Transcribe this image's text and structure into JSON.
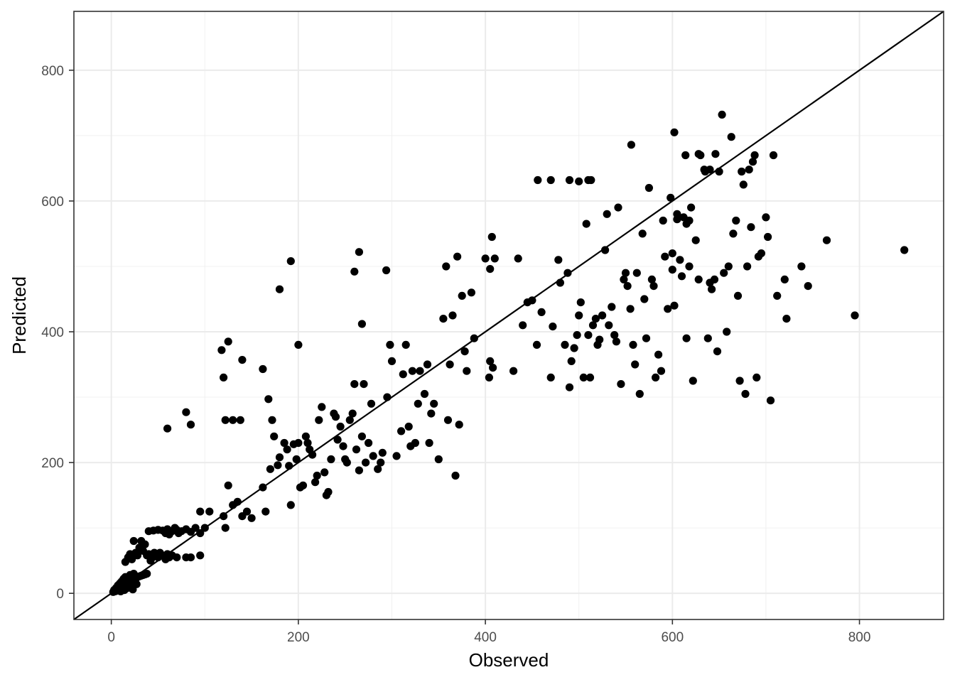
{
  "chart_data": {
    "type": "scatter",
    "xlabel": "Observed",
    "ylabel": "Predicted",
    "xlim": [
      -40,
      890
    ],
    "ylim": [
      -40,
      890
    ],
    "x_ticks": [
      0,
      200,
      400,
      600,
      800
    ],
    "y_ticks": [
      0,
      200,
      400,
      600,
      800
    ],
    "x_tick_labels": [
      "0",
      "200",
      "400",
      "600",
      "800"
    ],
    "y_tick_labels": [
      "0",
      "200",
      "400",
      "600",
      "800"
    ],
    "grid": true,
    "reference_line": {
      "type": "identity",
      "slope": 1,
      "intercept": 0
    },
    "point_color": "#000000",
    "points": [
      [
        2,
        2
      ],
      [
        3,
        5
      ],
      [
        4,
        3
      ],
      [
        5,
        8
      ],
      [
        6,
        4
      ],
      [
        7,
        12
      ],
      [
        8,
        6
      ],
      [
        9,
        15
      ],
      [
        10,
        3
      ],
      [
        11,
        18
      ],
      [
        12,
        9
      ],
      [
        13,
        22
      ],
      [
        14,
        5
      ],
      [
        15,
        25
      ],
      [
        16,
        12
      ],
      [
        17,
        8
      ],
      [
        18,
        20
      ],
      [
        19,
        15
      ],
      [
        20,
        28
      ],
      [
        21,
        10
      ],
      [
        22,
        24
      ],
      [
        23,
        6
      ],
      [
        24,
        30
      ],
      [
        25,
        18
      ],
      [
        26,
        22
      ],
      [
        27,
        14
      ],
      [
        28,
        25
      ],
      [
        30,
        26
      ],
      [
        32,
        27
      ],
      [
        34,
        28
      ],
      [
        36,
        29
      ],
      [
        38,
        30
      ],
      [
        15,
        48
      ],
      [
        18,
        55
      ],
      [
        20,
        60
      ],
      [
        22,
        52
      ],
      [
        24,
        80
      ],
      [
        26,
        62
      ],
      [
        28,
        58
      ],
      [
        30,
        70
      ],
      [
        32,
        80
      ],
      [
        34,
        65
      ],
      [
        36,
        75
      ],
      [
        38,
        58
      ],
      [
        40,
        60
      ],
      [
        42,
        50
      ],
      [
        44,
        55
      ],
      [
        46,
        62
      ],
      [
        48,
        58
      ],
      [
        50,
        55
      ],
      [
        52,
        62
      ],
      [
        55,
        58
      ],
      [
        58,
        52
      ],
      [
        60,
        60
      ],
      [
        62,
        55
      ],
      [
        65,
        58
      ],
      [
        70,
        55
      ],
      [
        80,
        55
      ],
      [
        85,
        55
      ],
      [
        95,
        58
      ],
      [
        40,
        95
      ],
      [
        45,
        96
      ],
      [
        50,
        97
      ],
      [
        55,
        96
      ],
      [
        58,
        92
      ],
      [
        60,
        98
      ],
      [
        62,
        90
      ],
      [
        65,
        95
      ],
      [
        68,
        100
      ],
      [
        70,
        97
      ],
      [
        72,
        92
      ],
      [
        75,
        95
      ],
      [
        80,
        98
      ],
      [
        85,
        94
      ],
      [
        90,
        100
      ],
      [
        95,
        92
      ],
      [
        100,
        100
      ],
      [
        105,
        125
      ],
      [
        95,
        125
      ],
      [
        60,
        252
      ],
      [
        80,
        277
      ],
      [
        85,
        258
      ],
      [
        118,
        372
      ],
      [
        120,
        330
      ],
      [
        122,
        265
      ],
      [
        125,
        385
      ],
      [
        130,
        265
      ],
      [
        138,
        265
      ],
      [
        140,
        357
      ],
      [
        162,
        343
      ],
      [
        168,
        297
      ],
      [
        172,
        265
      ],
      [
        120,
        118
      ],
      [
        122,
        100
      ],
      [
        125,
        165
      ],
      [
        130,
        135
      ],
      [
        135,
        140
      ],
      [
        140,
        118
      ],
      [
        145,
        125
      ],
      [
        150,
        115
      ],
      [
        162,
        162
      ],
      [
        165,
        125
      ],
      [
        170,
        190
      ],
      [
        174,
        240
      ],
      [
        178,
        196
      ],
      [
        180,
        208
      ],
      [
        185,
        230
      ],
      [
        188,
        220
      ],
      [
        190,
        195
      ],
      [
        192,
        135
      ],
      [
        195,
        228
      ],
      [
        198,
        205
      ],
      [
        200,
        230
      ],
      [
        202,
        162
      ],
      [
        205,
        165
      ],
      [
        208,
        240
      ],
      [
        210,
        230
      ],
      [
        212,
        220
      ],
      [
        215,
        212
      ],
      [
        218,
        170
      ],
      [
        220,
        180
      ],
      [
        222,
        265
      ],
      [
        225,
        285
      ],
      [
        228,
        185
      ],
      [
        230,
        150
      ],
      [
        232,
        155
      ],
      [
        235,
        205
      ],
      [
        238,
        275
      ],
      [
        240,
        270
      ],
      [
        242,
        235
      ],
      [
        245,
        255
      ],
      [
        248,
        225
      ],
      [
        250,
        205
      ],
      [
        252,
        200
      ],
      [
        255,
        265
      ],
      [
        258,
        275
      ],
      [
        260,
        320
      ],
      [
        262,
        220
      ],
      [
        265,
        188
      ],
      [
        268,
        240
      ],
      [
        270,
        320
      ],
      [
        272,
        200
      ],
      [
        275,
        230
      ],
      [
        278,
        290
      ],
      [
        280,
        210
      ],
      [
        285,
        190
      ],
      [
        288,
        200
      ],
      [
        290,
        215
      ],
      [
        295,
        300
      ],
      [
        298,
        380
      ],
      [
        300,
        355
      ],
      [
        305,
        210
      ],
      [
        310,
        248
      ],
      [
        312,
        335
      ],
      [
        315,
        380
      ],
      [
        318,
        255
      ],
      [
        320,
        225
      ],
      [
        322,
        340
      ],
      [
        325,
        230
      ],
      [
        328,
        290
      ],
      [
        330,
        340
      ],
      [
        335,
        305
      ],
      [
        338,
        350
      ],
      [
        340,
        230
      ],
      [
        342,
        275
      ],
      [
        345,
        290
      ],
      [
        350,
        205
      ],
      [
        355,
        420
      ],
      [
        358,
        500
      ],
      [
        360,
        265
      ],
      [
        362,
        350
      ],
      [
        365,
        425
      ],
      [
        368,
        180
      ],
      [
        370,
        515
      ],
      [
        372,
        258
      ],
      [
        375,
        455
      ],
      [
        378,
        370
      ],
      [
        380,
        340
      ],
      [
        385,
        460
      ],
      [
        388,
        390
      ],
      [
        180,
        465
      ],
      [
        192,
        508
      ],
      [
        200,
        380
      ],
      [
        260,
        492
      ],
      [
        265,
        522
      ],
      [
        268,
        412
      ],
      [
        294,
        494
      ],
      [
        400,
        512
      ],
      [
        405,
        496
      ],
      [
        407,
        545
      ],
      [
        410,
        512
      ],
      [
        405,
        355
      ],
      [
        408,
        345
      ],
      [
        404,
        330
      ],
      [
        430,
        340
      ],
      [
        435,
        512
      ],
      [
        440,
        410
      ],
      [
        445,
        445
      ],
      [
        450,
        448
      ],
      [
        455,
        380
      ],
      [
        460,
        430
      ],
      [
        470,
        330
      ],
      [
        472,
        408
      ],
      [
        478,
        510
      ],
      [
        480,
        475
      ],
      [
        485,
        380
      ],
      [
        488,
        490
      ],
      [
        490,
        315
      ],
      [
        492,
        355
      ],
      [
        495,
        375
      ],
      [
        498,
        395
      ],
      [
        500,
        425
      ],
      [
        502,
        445
      ],
      [
        505,
        330
      ],
      [
        508,
        565
      ],
      [
        510,
        395
      ],
      [
        512,
        330
      ],
      [
        515,
        410
      ],
      [
        518,
        420
      ],
      [
        520,
        380
      ],
      [
        522,
        388
      ],
      [
        525,
        425
      ],
      [
        528,
        525
      ],
      [
        530,
        580
      ],
      [
        532,
        410
      ],
      [
        535,
        438
      ],
      [
        538,
        395
      ],
      [
        540,
        385
      ],
      [
        542,
        590
      ],
      [
        545,
        320
      ],
      [
        548,
        480
      ],
      [
        550,
        490
      ],
      [
        552,
        470
      ],
      [
        555,
        435
      ],
      [
        558,
        380
      ],
      [
        560,
        350
      ],
      [
        562,
        490
      ],
      [
        565,
        305
      ],
      [
        568,
        550
      ],
      [
        570,
        450
      ],
      [
        572,
        390
      ],
      [
        575,
        620
      ],
      [
        578,
        480
      ],
      [
        580,
        470
      ],
      [
        582,
        330
      ],
      [
        585,
        365
      ],
      [
        588,
        340
      ],
      [
        590,
        570
      ],
      [
        592,
        515
      ],
      [
        595,
        435
      ],
      [
        598,
        605
      ],
      [
        600,
        495
      ],
      [
        602,
        440
      ],
      [
        605,
        580
      ],
      [
        608,
        510
      ],
      [
        610,
        485
      ],
      [
        612,
        575
      ],
      [
        615,
        390
      ],
      [
        618,
        500
      ],
      [
        620,
        590
      ],
      [
        622,
        325
      ],
      [
        625,
        540
      ],
      [
        628,
        480
      ],
      [
        630,
        670
      ],
      [
        635,
        645
      ],
      [
        638,
        390
      ],
      [
        640,
        475
      ],
      [
        642,
        465
      ],
      [
        645,
        480
      ],
      [
        648,
        370
      ],
      [
        650,
        645
      ],
      [
        655,
        490
      ],
      [
        658,
        400
      ],
      [
        660,
        500
      ],
      [
        665,
        550
      ],
      [
        668,
        570
      ],
      [
        670,
        455
      ],
      [
        672,
        325
      ],
      [
        674,
        645
      ],
      [
        676,
        625
      ],
      [
        678,
        305
      ],
      [
        680,
        500
      ],
      [
        682,
        648
      ],
      [
        684,
        560
      ],
      [
        686,
        660
      ],
      [
        688,
        670
      ],
      [
        690,
        330
      ],
      [
        692,
        515
      ],
      [
        695,
        520
      ],
      [
        700,
        575
      ],
      [
        702,
        545
      ],
      [
        705,
        295
      ],
      [
        708,
        670
      ],
      [
        712,
        455
      ],
      [
        720,
        480
      ],
      [
        722,
        420
      ],
      [
        738,
        500
      ],
      [
        745,
        470
      ],
      [
        765,
        540
      ],
      [
        795,
        425
      ],
      [
        848,
        525
      ],
      [
        456,
        632
      ],
      [
        470,
        632
      ],
      [
        490,
        632
      ],
      [
        500,
        630
      ],
      [
        510,
        632
      ],
      [
        513,
        632
      ],
      [
        556,
        686
      ],
      [
        602,
        705
      ],
      [
        614,
        670
      ],
      [
        628,
        672
      ],
      [
        634,
        648
      ],
      [
        640,
        648
      ],
      [
        646,
        672
      ],
      [
        653,
        732
      ],
      [
        663,
        698
      ],
      [
        605,
        572
      ],
      [
        615,
        565
      ],
      [
        618,
        570
      ],
      [
        600,
        520
      ]
    ]
  }
}
